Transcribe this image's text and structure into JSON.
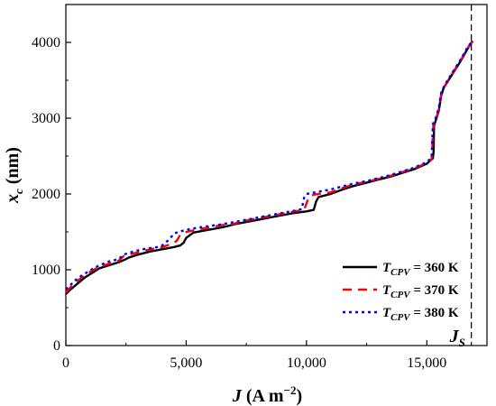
{
  "chart_data": {
    "type": "line",
    "xlabel": {
      "var": "J",
      "rest": " (A m",
      "sup": "−2",
      "close": ")"
    },
    "ylabel": {
      "var": "x",
      "sub": "c",
      "rest": " (nm)"
    },
    "xlim": [
      0,
      17500
    ],
    "ylim": [
      0,
      4500
    ],
    "x_ticks": [
      0,
      5000,
      10000,
      15000
    ],
    "x_tick_labels": [
      "0",
      "5,000",
      "10,000",
      "15,000"
    ],
    "y_ticks": [
      0,
      1000,
      2000,
      3000,
      4000
    ],
    "y_tick_labels": [
      "0",
      "1000",
      "2000",
      "3000",
      "4000"
    ],
    "grid": false,
    "legend_position": "bottom-right",
    "annotation": {
      "var": "J",
      "sub": "S",
      "x": 16850
    },
    "series": [
      {
        "label": {
          "var": "T",
          "sub": "CPV",
          "rest": " = 360 K"
        },
        "color": "#000000",
        "dash": "solid",
        "points": [
          [
            0,
            680
          ],
          [
            200,
            740
          ],
          [
            500,
            820
          ],
          [
            800,
            900
          ],
          [
            1100,
            960
          ],
          [
            1400,
            1020
          ],
          [
            1800,
            1060
          ],
          [
            2200,
            1100
          ],
          [
            2500,
            1140
          ],
          [
            2600,
            1160
          ],
          [
            3000,
            1200
          ],
          [
            3500,
            1240
          ],
          [
            4000,
            1270
          ],
          [
            4500,
            1300
          ],
          [
            4750,
            1320
          ],
          [
            4900,
            1360
          ],
          [
            5000,
            1420
          ],
          [
            5300,
            1490
          ],
          [
            5800,
            1520
          ],
          [
            6500,
            1560
          ],
          [
            7000,
            1600
          ],
          [
            7500,
            1630
          ],
          [
            8000,
            1660
          ],
          [
            8500,
            1690
          ],
          [
            9000,
            1720
          ],
          [
            9500,
            1750
          ],
          [
            10000,
            1770
          ],
          [
            10300,
            1790
          ],
          [
            10400,
            1900
          ],
          [
            10500,
            1960
          ],
          [
            11000,
            2000
          ],
          [
            11500,
            2060
          ],
          [
            12000,
            2110
          ],
          [
            12500,
            2150
          ],
          [
            13000,
            2190
          ],
          [
            13500,
            2230
          ],
          [
            14000,
            2280
          ],
          [
            14500,
            2330
          ],
          [
            15000,
            2400
          ],
          [
            15250,
            2470
          ],
          [
            15280,
            2560
          ],
          [
            15300,
            2900
          ],
          [
            15400,
            3000
          ],
          [
            15500,
            3100
          ],
          [
            15600,
            3300
          ],
          [
            15700,
            3400
          ],
          [
            15900,
            3500
          ],
          [
            16100,
            3600
          ],
          [
            16400,
            3750
          ],
          [
            16700,
            3920
          ],
          [
            16900,
            4020
          ]
        ]
      },
      {
        "label": {
          "var": "T",
          "sub": "CPV",
          "rest": " = 370 K"
        },
        "color": "#ff0000",
        "dash": "10,7",
        "points": [
          [
            0,
            700
          ],
          [
            200,
            770
          ],
          [
            500,
            860
          ],
          [
            800,
            930
          ],
          [
            1100,
            990
          ],
          [
            1400,
            1040
          ],
          [
            1800,
            1080
          ],
          [
            2200,
            1120
          ],
          [
            2400,
            1180
          ],
          [
            2600,
            1200
          ],
          [
            3000,
            1230
          ],
          [
            3500,
            1270
          ],
          [
            4000,
            1300
          ],
          [
            4400,
            1340
          ],
          [
            4600,
            1380
          ],
          [
            4750,
            1460
          ],
          [
            4900,
            1490
          ],
          [
            5300,
            1520
          ],
          [
            5800,
            1550
          ],
          [
            6500,
            1590
          ],
          [
            7000,
            1610
          ],
          [
            7500,
            1650
          ],
          [
            8000,
            1680
          ],
          [
            8500,
            1710
          ],
          [
            9000,
            1740
          ],
          [
            9500,
            1770
          ],
          [
            9900,
            1790
          ],
          [
            10100,
            1960
          ],
          [
            10300,
            1990
          ],
          [
            11000,
            2020
          ],
          [
            11500,
            2080
          ],
          [
            12000,
            2130
          ],
          [
            12500,
            2160
          ],
          [
            13000,
            2200
          ],
          [
            13500,
            2240
          ],
          [
            14000,
            2290
          ],
          [
            14500,
            2340
          ],
          [
            15000,
            2410
          ],
          [
            15200,
            2460
          ],
          [
            15270,
            2900
          ],
          [
            15400,
            3010
          ],
          [
            15500,
            3120
          ],
          [
            15600,
            3320
          ],
          [
            15700,
            3400
          ],
          [
            15900,
            3510
          ],
          [
            16100,
            3610
          ],
          [
            16400,
            3760
          ],
          [
            16700,
            3930
          ],
          [
            16900,
            4010
          ]
        ]
      },
      {
        "label": {
          "var": "T",
          "sub": "CPV",
          "rest": " = 380 K"
        },
        "color": "#0000ff",
        "dash": "3,4",
        "points": [
          [
            0,
            740
          ],
          [
            200,
            800
          ],
          [
            500,
            890
          ],
          [
            800,
            950
          ],
          [
            1100,
            1010
          ],
          [
            1400,
            1060
          ],
          [
            1800,
            1110
          ],
          [
            2200,
            1140
          ],
          [
            2400,
            1200
          ],
          [
            2800,
            1240
          ],
          [
            3200,
            1270
          ],
          [
            3600,
            1290
          ],
          [
            3800,
            1300
          ],
          [
            4000,
            1320
          ],
          [
            4300,
            1400
          ],
          [
            4500,
            1480
          ],
          [
            4800,
            1510
          ],
          [
            5200,
            1540
          ],
          [
            5800,
            1570
          ],
          [
            6500,
            1600
          ],
          [
            7000,
            1630
          ],
          [
            7500,
            1660
          ],
          [
            8000,
            1690
          ],
          [
            8500,
            1720
          ],
          [
            9000,
            1750
          ],
          [
            9500,
            1780
          ],
          [
            9800,
            1800
          ],
          [
            9900,
            1950
          ],
          [
            10000,
            2000
          ],
          [
            10500,
            2030
          ],
          [
            11000,
            2060
          ],
          [
            11500,
            2100
          ],
          [
            12000,
            2140
          ],
          [
            12500,
            2170
          ],
          [
            13000,
            2210
          ],
          [
            13500,
            2250
          ],
          [
            14000,
            2300
          ],
          [
            14500,
            2350
          ],
          [
            15000,
            2420
          ],
          [
            15200,
            2480
          ],
          [
            15250,
            2920
          ],
          [
            15400,
            3030
          ],
          [
            15500,
            3140
          ],
          [
            15600,
            3340
          ],
          [
            15700,
            3410
          ],
          [
            15900,
            3520
          ],
          [
            16100,
            3620
          ],
          [
            16400,
            3770
          ],
          [
            16700,
            3940
          ],
          [
            16900,
            4020
          ]
        ]
      }
    ]
  }
}
